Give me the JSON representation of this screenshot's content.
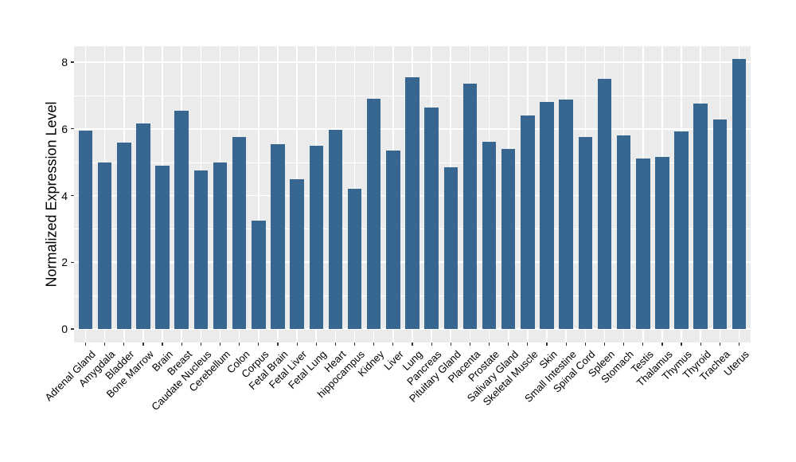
{
  "chart_data": {
    "type": "bar",
    "title": "",
    "xlabel": "",
    "ylabel": "Normalized Expression Level",
    "ylim": [
      0,
      8.48
    ],
    "yticks": [
      0,
      2,
      4,
      6,
      8
    ],
    "yticks_minor": [
      1,
      3,
      5,
      7
    ],
    "grid": "on",
    "legend_position": "none",
    "categories": [
      "Adrenal Gland",
      "Amygdala",
      "Bladder",
      "Bone Marrow",
      "Brain",
      "Breast",
      "Caudate Nucleus",
      "Cerebellum",
      "Colon",
      "Corpus",
      "Fetal Brain",
      "Fetal Liver",
      "Fetal Lung",
      "Heart",
      "hippocampus",
      "Kidney",
      "Liver",
      "Lung",
      "Pancreas",
      "Pituitary Gland",
      "Placenta",
      "Prostate",
      "Salivary Gland",
      "Skeletal Muscle",
      "Skin",
      "Small Intestine",
      "Spinal Cord",
      "Spleen",
      "Stomach",
      "Testis",
      "Thalamus",
      "Thymus",
      "Thyroid",
      "Trachea",
      "Uterus"
    ],
    "values": [
      5.95,
      5.0,
      5.6,
      6.15,
      4.9,
      6.55,
      4.75,
      5.0,
      5.75,
      3.25,
      5.55,
      4.5,
      5.5,
      5.97,
      4.2,
      6.9,
      5.35,
      7.55,
      6.65,
      4.85,
      7.35,
      5.62,
      5.4,
      6.4,
      6.8,
      6.87,
      5.75,
      7.5,
      5.8,
      5.12,
      5.15,
      5.93,
      6.75,
      6.27,
      8.1
    ],
    "colors": {
      "bar_fill": "#376690",
      "panel_background": "#EBEBEB",
      "grid": "#FFFFFF",
      "text": "#000000",
      "tick_mark": "#333333",
      "figure_background": "#FFFFFF"
    }
  }
}
